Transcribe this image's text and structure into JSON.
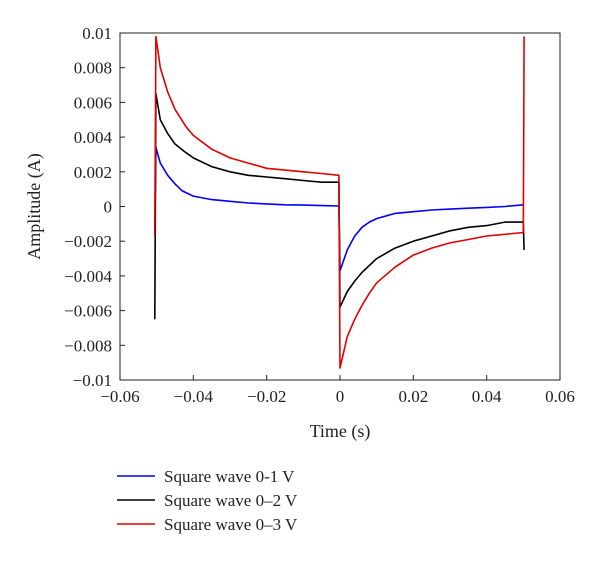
{
  "chart_data": {
    "type": "line",
    "title": "",
    "xlabel": "Time (s)",
    "ylabel": "Amplitude (A)",
    "xlim": [
      -0.06,
      0.06
    ],
    "ylim": [
      -0.01,
      0.01
    ],
    "xticks": [
      -0.06,
      -0.04,
      -0.02,
      0,
      0.02,
      0.04,
      0.06
    ],
    "xtick_labels": [
      "−0.06",
      "−0.04",
      "−0.02",
      "0",
      "0.02",
      "0.04",
      "0.06"
    ],
    "yticks": [
      0.01,
      0.008,
      0.006,
      0.004,
      0.002,
      0,
      -0.002,
      -0.004,
      -0.006,
      -0.008,
      -0.01
    ],
    "ytick_labels": [
      "0.01",
      "0.008",
      "0.006",
      "0.004",
      "0.002",
      "0",
      "−0.002",
      "−0.004",
      "−0.006",
      "−0.008",
      "−0.01"
    ],
    "grid": false,
    "legend_position": "below-left",
    "series": [
      {
        "name": "Square wave 0-1 V",
        "color": "#0000ff",
        "points": [
          [
            -0.0505,
            -0.0013
          ],
          [
            -0.0502,
            0.0034
          ],
          [
            -0.049,
            0.0025
          ],
          [
            -0.047,
            0.0018
          ],
          [
            -0.045,
            0.0013
          ],
          [
            -0.043,
            0.0009
          ],
          [
            -0.04,
            0.0006
          ],
          [
            -0.035,
            0.0004
          ],
          [
            -0.03,
            0.0003
          ],
          [
            -0.025,
            0.0002
          ],
          [
            -0.02,
            0.00015
          ],
          [
            -0.015,
            0.0001
          ],
          [
            -0.01,
            8e-05
          ],
          [
            -0.005,
            5e-05
          ],
          [
            -0.0003,
            3e-05
          ],
          [
            0,
            -0.0037
          ],
          [
            0.002,
            -0.0025
          ],
          [
            0.004,
            -0.0017
          ],
          [
            0.006,
            -0.0012
          ],
          [
            0.008,
            -0.0009
          ],
          [
            0.01,
            -0.0007
          ],
          [
            0.015,
            -0.0004
          ],
          [
            0.02,
            -0.0003
          ],
          [
            0.025,
            -0.0002
          ],
          [
            0.03,
            -0.00015
          ],
          [
            0.035,
            -0.0001
          ],
          [
            0.04,
            -5e-05
          ],
          [
            0.045,
            0.0
          ],
          [
            0.05,
            0.0001
          ]
        ]
      },
      {
        "name": "Square wave 0–2 V",
        "color": "#000000",
        "points": [
          [
            -0.0505,
            -0.0065
          ],
          [
            -0.0502,
            0.0065
          ],
          [
            -0.049,
            0.005
          ],
          [
            -0.047,
            0.0042
          ],
          [
            -0.045,
            0.0036
          ],
          [
            -0.042,
            0.0031
          ],
          [
            -0.04,
            0.0028
          ],
          [
            -0.035,
            0.0023
          ],
          [
            -0.03,
            0.002
          ],
          [
            -0.025,
            0.0018
          ],
          [
            -0.02,
            0.0017
          ],
          [
            -0.015,
            0.0016
          ],
          [
            -0.01,
            0.0015
          ],
          [
            -0.005,
            0.0014
          ],
          [
            -0.0003,
            0.0014
          ],
          [
            0,
            -0.0058
          ],
          [
            0.002,
            -0.0049
          ],
          [
            0.004,
            -0.0043
          ],
          [
            0.006,
            -0.0038
          ],
          [
            0.008,
            -0.0034
          ],
          [
            0.01,
            -0.003
          ],
          [
            0.015,
            -0.0024
          ],
          [
            0.02,
            -0.002
          ],
          [
            0.025,
            -0.0017
          ],
          [
            0.03,
            -0.0014
          ],
          [
            0.035,
            -0.0012
          ],
          [
            0.04,
            -0.0011
          ],
          [
            0.045,
            -0.0009
          ],
          [
            0.05,
            -0.0009
          ],
          [
            0.0502,
            -0.0025
          ]
        ]
      },
      {
        "name": "Square wave 0–3 V",
        "color": "#e00000",
        "points": [
          [
            -0.0505,
            -0.0017
          ],
          [
            -0.0502,
            0.0098
          ],
          [
            -0.049,
            0.008
          ],
          [
            -0.047,
            0.0066
          ],
          [
            -0.045,
            0.0056
          ],
          [
            -0.042,
            0.0046
          ],
          [
            -0.04,
            0.0041
          ],
          [
            -0.035,
            0.0033
          ],
          [
            -0.03,
            0.0028
          ],
          [
            -0.025,
            0.0025
          ],
          [
            -0.02,
            0.0022
          ],
          [
            -0.015,
            0.0021
          ],
          [
            -0.01,
            0.002
          ],
          [
            -0.005,
            0.0019
          ],
          [
            -0.0003,
            0.0018
          ],
          [
            0,
            -0.0093
          ],
          [
            0.002,
            -0.0075
          ],
          [
            0.004,
            -0.0065
          ],
          [
            0.006,
            -0.0057
          ],
          [
            0.008,
            -0.005
          ],
          [
            0.01,
            -0.0044
          ],
          [
            0.015,
            -0.0035
          ],
          [
            0.02,
            -0.0028
          ],
          [
            0.025,
            -0.0024
          ],
          [
            0.03,
            -0.0021
          ],
          [
            0.035,
            -0.0019
          ],
          [
            0.04,
            -0.0017
          ],
          [
            0.045,
            -0.0016
          ],
          [
            0.05,
            -0.0015
          ],
          [
            0.0502,
            0.0098
          ]
        ]
      }
    ]
  }
}
